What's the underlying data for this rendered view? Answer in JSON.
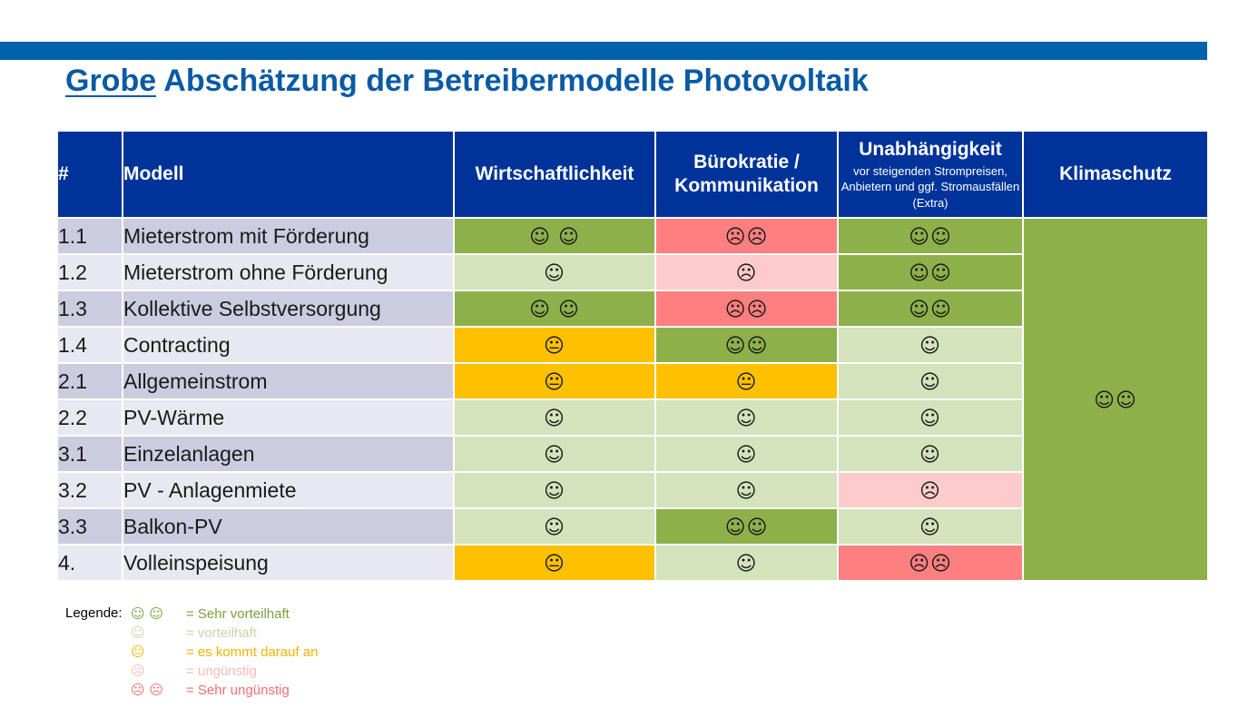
{
  "title": {
    "underlined": "Grobe",
    "rest": " Abschätzung der Betreibermodelle Photovoltaik"
  },
  "table": {
    "headers": {
      "num": "#",
      "model": "Modell",
      "wirtschaft": "Wirtschaftlichkeit",
      "buero": "Bürokratie / Kommunikation",
      "unab": "Unabhängigkeit",
      "unab_sub": "vor steigenden Strompreisen, Anbietern und ggf. Stromausfällen (Extra)",
      "klima": "Klimaschutz"
    },
    "rows": [
      {
        "num": "1.1",
        "model": "Mieterstrom mit Förderung",
        "wirtschaft": "☺ ☺",
        "buero": "☹☹",
        "unab": "☺☺"
      },
      {
        "num": "1.2",
        "model": "Mieterstrom ohne Förderung",
        "wirtschaft": "☺",
        "buero": "☹",
        "unab": "☺☺"
      },
      {
        "num": "1.3",
        "model": "Kollektive Selbstversorgung",
        "wirtschaft": "☺ ☺",
        "buero": "☹☹",
        "unab": "☺☺"
      },
      {
        "num": "1.4",
        "model": "Contracting",
        "wirtschaft": "😐",
        "buero": "☺☺",
        "unab": "☺"
      },
      {
        "num": "2.1",
        "model": "Allgemeinstrom",
        "wirtschaft": "😐",
        "buero": "😐",
        "unab": "☺"
      },
      {
        "num": "2.2",
        "model": "PV-Wärme",
        "wirtschaft": "☺",
        "buero": "☺",
        "unab": "☺"
      },
      {
        "num": "3.1",
        "model": "Einzelanlagen",
        "wirtschaft": "☺",
        "buero": "☺",
        "unab": "☺"
      },
      {
        "num": "3.2",
        "model": "PV - Anlagenmiete",
        "wirtschaft": "☺",
        "buero": "☺",
        "unab": "☹"
      },
      {
        "num": "3.3",
        "model": "Balkon-PV",
        "wirtschaft": "☺",
        "buero": "☺☺",
        "unab": "☺"
      },
      {
        "num": "4.",
        "model": "Volleinspeisung",
        "wirtschaft": "😐",
        "buero": "☺",
        "unab": "☹☹"
      }
    ],
    "klima_all": "☺☺"
  },
  "legend": {
    "title": "Legende:",
    "items": [
      {
        "symbol": "☺ ☺",
        "text": "= Sehr vorteilhaft",
        "color": "#79a03a"
      },
      {
        "symbol": "☺",
        "text": "= vorteilhaft",
        "color": "#c3d9a6"
      },
      {
        "symbol": "😐",
        "text": "= es kommt darauf an",
        "color": "#f0b400"
      },
      {
        "symbol": "☹",
        "text": "= ungünstig",
        "color": "#f9b8b8"
      },
      {
        "symbol": "☹ ☹",
        "text": "= Sehr ungünstig",
        "color": "#f06d6d"
      }
    ]
  },
  "colors": {
    "header_bg": "#003399",
    "sehr_vorteilhaft": "#8db04a",
    "vorteilhaft": "#d3e3bb",
    "es_kommt_darauf_an": "#ffc000",
    "unguenstig": "#fdcbcb",
    "sehr_unguenstig": "#fe7f7f"
  }
}
